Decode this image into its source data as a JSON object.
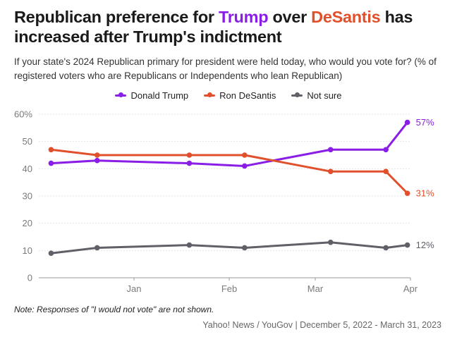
{
  "title": {
    "part1": "Republican preference for ",
    "trump": "Trump",
    "part2": " over ",
    "desantis": "DeSantis",
    "part3": " has increased after Trump's indictment"
  },
  "subtitle": "If your state's 2024 Republican primary for president were held today, who would you vote for? (% of registered voters who are Republicans or Independents who lean Republican)",
  "note": "Note: Responses of \"I would not vote\" are not shown.",
  "source": "Yahoo! News / YouGov | December 5, 2022 - March 31, 2023",
  "colors": {
    "trump": "#8a1ee6",
    "desantis": "#e0502c",
    "not_sure": "#5f6068"
  },
  "chart_data": {
    "type": "line",
    "x": [
      "2022-12-05",
      "2022-12-20",
      "2023-01-19",
      "2023-02-06",
      "2023-03-06",
      "2023-03-24",
      "2023-03-31"
    ],
    "x_ticks": [
      {
        "date": "2023-01-01",
        "label": "Jan"
      },
      {
        "date": "2023-02-01",
        "label": "Feb"
      },
      {
        "date": "2023-03-01",
        "label": "Mar"
      },
      {
        "date": "2023-04-01",
        "label": "Apr"
      }
    ],
    "series": [
      {
        "name": "Donald Trump",
        "color": "#8a1ee6",
        "values": [
          42,
          43,
          42,
          41,
          47,
          47,
          57
        ],
        "end_label": "57%"
      },
      {
        "name": "Ron DeSantis",
        "color": "#e0502c",
        "values": [
          47,
          45,
          45,
          45,
          39,
          39,
          31
        ],
        "end_label": "31%"
      },
      {
        "name": "Not sure",
        "color": "#5f6068",
        "values": [
          9,
          11,
          12,
          11,
          13,
          11,
          12
        ],
        "end_label": "12%"
      }
    ],
    "y_ticks": [
      "0",
      "10",
      "20",
      "30",
      "40",
      "50",
      "60%"
    ],
    "ylim": [
      0,
      60
    ],
    "xlim": [
      "2022-12-01",
      "2023-04-01"
    ],
    "grid": true,
    "legend_position": "top"
  }
}
